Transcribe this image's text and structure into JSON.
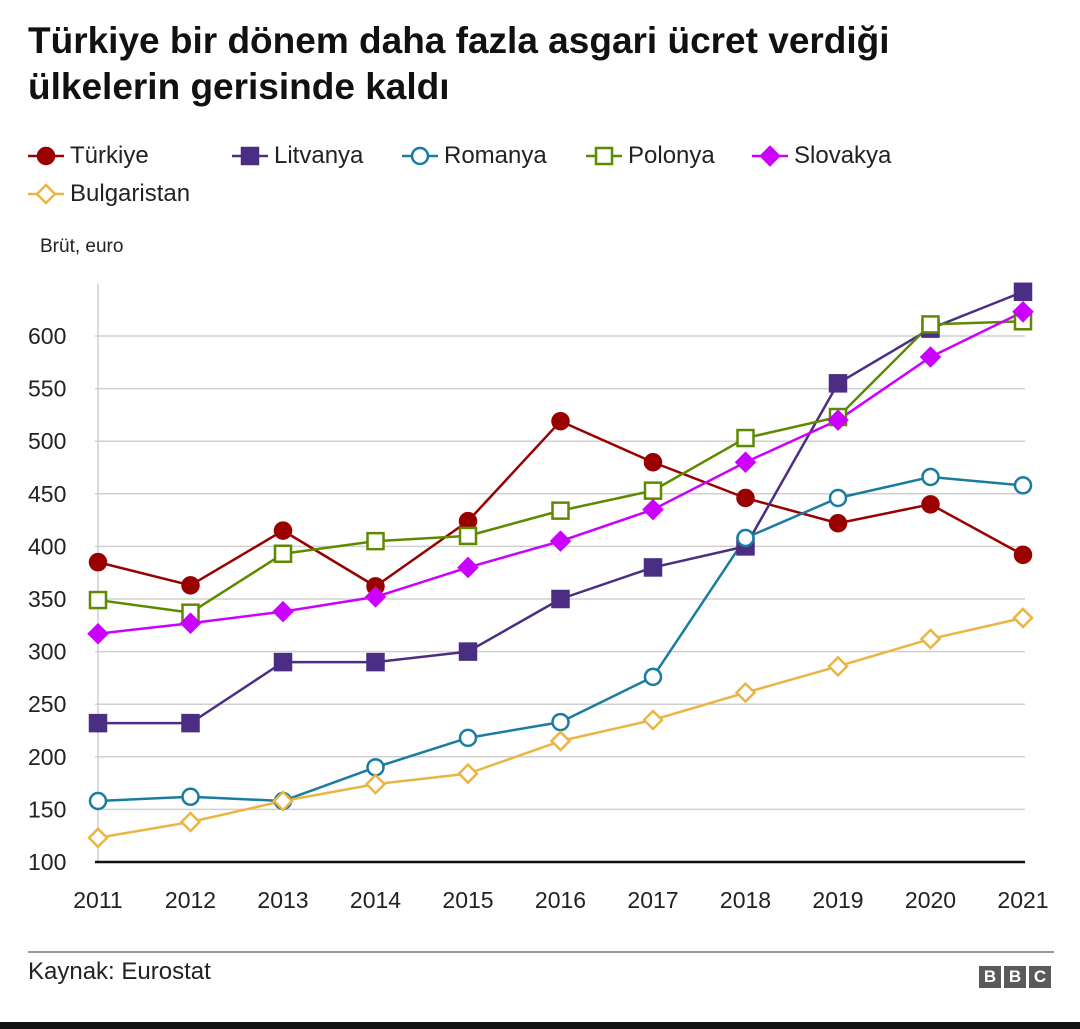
{
  "header": {
    "title": "Türkiye bir dönem daha fazla asgari ücret verdiği ülkelerin gerisinde kaldı"
  },
  "footer": {
    "source": "Kaynak: Eurostat",
    "logo": [
      "B",
      "B",
      "C"
    ]
  },
  "chart_data": {
    "type": "line",
    "title": "Türkiye bir dönem daha fazla asgari ücret verdiği ülkelerin gerisinde kaldı",
    "ylabel": "Brüt, euro",
    "xlabel": "",
    "x": [
      "2011",
      "2012",
      "2013",
      "2014",
      "2015",
      "2016",
      "2017",
      "2018",
      "2019",
      "2020",
      "2021"
    ],
    "ylim": [
      100,
      650
    ],
    "yticks": [
      100,
      150,
      200,
      250,
      300,
      350,
      400,
      450,
      500,
      550,
      600
    ],
    "grid": true,
    "legend_position": "top",
    "series": [
      {
        "name": "Türkiye",
        "color": "#990000",
        "marker": "circle",
        "filled": true,
        "values": [
          385,
          363,
          415,
          362,
          424,
          519,
          480,
          446,
          422,
          440,
          392
        ]
      },
      {
        "name": "Litvanya",
        "color": "#4b2e83",
        "marker": "square",
        "filled": true,
        "values": [
          232,
          232,
          290,
          290,
          300,
          350,
          380,
          400,
          555,
          607,
          642
        ]
      },
      {
        "name": "Romanya",
        "color": "#1a7ca0",
        "marker": "circle",
        "filled": false,
        "values": [
          158,
          162,
          158,
          190,
          218,
          233,
          276,
          408,
          446,
          466,
          458
        ]
      },
      {
        "name": "Polonya",
        "color": "#5e8a00",
        "marker": "square",
        "filled": false,
        "values": [
          349,
          337,
          393,
          405,
          410,
          434,
          453,
          503,
          523,
          611,
          614
        ]
      },
      {
        "name": "Slovakya",
        "color": "#cc00ff",
        "marker": "diamond",
        "filled": true,
        "values": [
          317,
          327,
          338,
          352,
          380,
          405,
          435,
          480,
          520,
          580,
          623
        ]
      },
      {
        "name": "Bulgaristan",
        "color": "#eab543",
        "marker": "diamond",
        "filled": false,
        "values": [
          123,
          138,
          158,
          174,
          184,
          215,
          235,
          261,
          286,
          312,
          332
        ]
      }
    ]
  }
}
